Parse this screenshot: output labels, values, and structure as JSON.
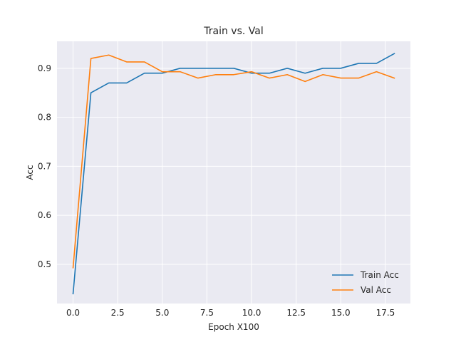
{
  "chart_data": {
    "type": "line",
    "title": "Train vs. Val",
    "xlabel": "Epoch X100",
    "ylabel": "Acc",
    "xlim": [
      -0.9,
      18.9
    ],
    "ylim": [
      0.42,
      0.955
    ],
    "xticks": [
      0.0,
      2.5,
      5.0,
      7.5,
      10.0,
      12.5,
      15.0,
      17.5
    ],
    "xtick_labels": [
      "0.0",
      "2.5",
      "5.0",
      "7.5",
      "10.0",
      "12.5",
      "15.0",
      "17.5"
    ],
    "yticks": [
      0.5,
      0.6,
      0.7,
      0.8,
      0.9
    ],
    "ytick_labels": [
      "0.5",
      "0.6",
      "0.7",
      "0.8",
      "0.9"
    ],
    "grid": true,
    "legend_position": "lower-right",
    "background": "#eaeaf2",
    "x": [
      0,
      1,
      2,
      3,
      4,
      5,
      6,
      7,
      8,
      9,
      10,
      11,
      12,
      13,
      14,
      15,
      16,
      17,
      18
    ],
    "series": [
      {
        "name": "Train Acc",
        "color": "#1f77b4",
        "values": [
          0.44,
          0.85,
          0.87,
          0.87,
          0.89,
          0.89,
          0.9,
          0.9,
          0.9,
          0.9,
          0.89,
          0.89,
          0.9,
          0.89,
          0.9,
          0.9,
          0.91,
          0.91,
          0.93
        ]
      },
      {
        "name": "Val Acc",
        "color": "#ff7f0e",
        "values": [
          0.493,
          0.92,
          0.927,
          0.913,
          0.913,
          0.893,
          0.893,
          0.88,
          0.887,
          0.887,
          0.893,
          0.88,
          0.887,
          0.873,
          0.887,
          0.88,
          0.88,
          0.893,
          0.88
        ]
      }
    ]
  }
}
